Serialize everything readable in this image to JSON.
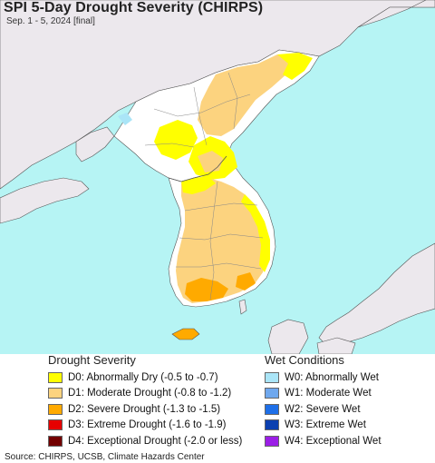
{
  "map": {
    "title": "SPI 5-Day Drought Severity (CHIRPS)",
    "subtitle": "Sep. 1 - 5, 2024 [final]",
    "colors": {
      "ocean": "#b6f4f4",
      "land": "#ffffff",
      "outside_land": "#ece8ed",
      "border": "#555555"
    }
  },
  "drought_legend": {
    "title": "Drought Severity",
    "items": [
      {
        "label": "D0: Abnormally Dry (-0.5 to -0.7)",
        "color": "#ffff00"
      },
      {
        "label": "D1: Moderate Drought (-0.8 to -1.2)",
        "color": "#fcd37f"
      },
      {
        "label": "D2: Severe Drought (-1.3 to -1.5)",
        "color": "#ffaa00"
      },
      {
        "label": "D3: Extreme Drought (-1.6 to -1.9)",
        "color": "#e60000"
      },
      {
        "label": "D4: Exceptional Drought (-2.0 or less)",
        "color": "#730000"
      }
    ]
  },
  "wet_legend": {
    "title": "Wet Conditions",
    "items": [
      {
        "label": "W0: Abnormally Wet",
        "color": "#aae5f7"
      },
      {
        "label": "W1: Moderate Wet",
        "color": "#6fa8ee"
      },
      {
        "label": "W2: Severe Wet",
        "color": "#1e6fe8"
      },
      {
        "label": "W3: Extreme Wet",
        "color": "#0c40b0"
      },
      {
        "label": "W4: Exceptional Wet",
        "color": "#9b1ee6"
      }
    ]
  },
  "source": "Source: CHIRPS, UCSB, Climate Hazards Center"
}
